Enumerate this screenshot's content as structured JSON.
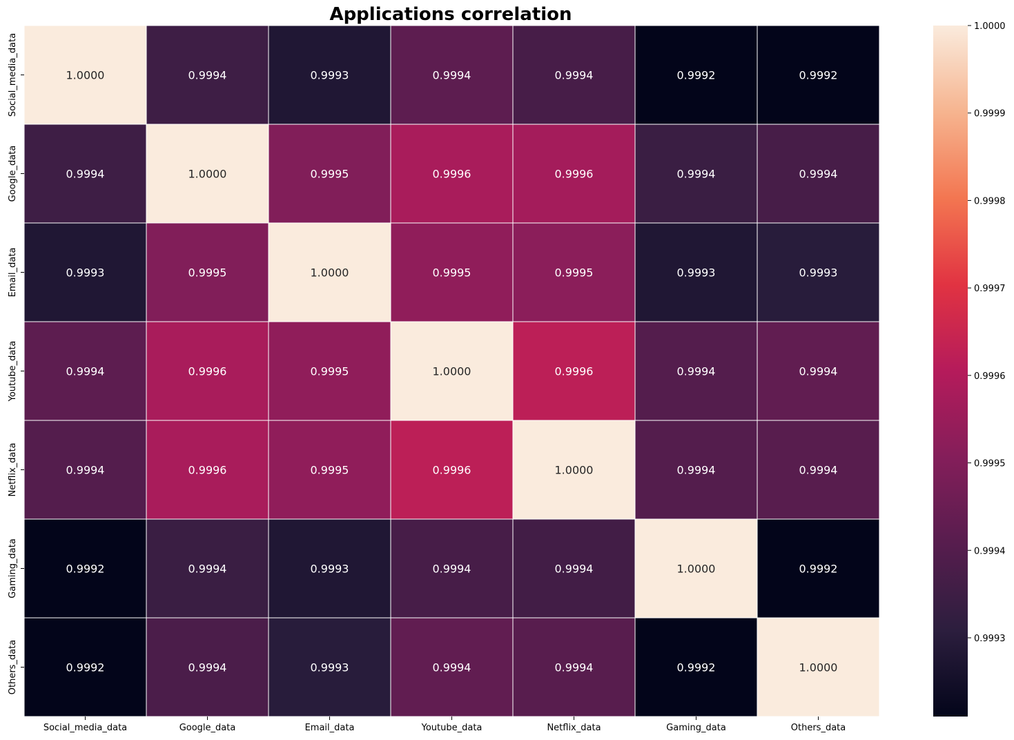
{
  "chart_data": {
    "type": "heatmap",
    "title": "Applications correlation",
    "xlabel": "",
    "ylabel": "",
    "x_categories": [
      "Social_media_data",
      "Google_data",
      "Email_data",
      "Youtube_data",
      "Netflix_data",
      "Gaming_data",
      "Others_data"
    ],
    "y_categories": [
      "Social_media_data",
      "Google_data",
      "Email_data",
      "Youtube_data",
      "Netflix_data",
      "Gaming_data",
      "Others_data"
    ],
    "values": [
      [
        1.0,
        0.99935,
        0.99928,
        0.99942,
        0.99937,
        0.99917,
        0.9992
      ],
      [
        0.99935,
        1.0,
        0.9995,
        0.99958,
        0.99957,
        0.99934,
        0.99937
      ],
      [
        0.99928,
        0.9995,
        1.0,
        0.99953,
        0.99952,
        0.99928,
        0.9993
      ],
      [
        0.99942,
        0.99958,
        0.99953,
        1.0,
        0.99962,
        0.9994,
        0.99943
      ],
      [
        0.9994,
        0.99958,
        0.99953,
        0.99962,
        1.0,
        0.9994,
        0.99941
      ],
      [
        0.99917,
        0.99934,
        0.99928,
        0.99937,
        0.99936,
        1.0,
        0.9992
      ],
      [
        0.9992,
        0.99938,
        0.9993,
        0.99943,
        0.99941,
        0.9992,
        1.0
      ]
    ],
    "annotations": [
      [
        "1.0000",
        "0.9994",
        "0.9993",
        "0.9994",
        "0.9994",
        "0.9992",
        "0.9992"
      ],
      [
        "0.9994",
        "1.0000",
        "0.9995",
        "0.9996",
        "0.9996",
        "0.9994",
        "0.9994"
      ],
      [
        "0.9993",
        "0.9995",
        "1.0000",
        "0.9995",
        "0.9995",
        "0.9993",
        "0.9993"
      ],
      [
        "0.9994",
        "0.9996",
        "0.9995",
        "1.0000",
        "0.9996",
        "0.9994",
        "0.9994"
      ],
      [
        "0.9994",
        "0.9996",
        "0.9995",
        "0.9996",
        "1.0000",
        "0.9994",
        "0.9994"
      ],
      [
        "0.9992",
        "0.9994",
        "0.9993",
        "0.9994",
        "0.9994",
        "1.0000",
        "0.9992"
      ],
      [
        "0.9992",
        "0.9994",
        "0.9993",
        "0.9994",
        "0.9994",
        "0.9992",
        "1.0000"
      ]
    ],
    "colorbar": {
      "vmin": 0.99921,
      "vmax": 1.0,
      "ticks": [
        "0.9993",
        "0.9994",
        "0.9995",
        "0.9996",
        "0.9997",
        "0.9998",
        "0.9999",
        "1.0000"
      ],
      "colormap": "rocket",
      "colormap_stops": [
        "#03051a",
        "#2c1e3e",
        "#571d4e",
        "#841e5a",
        "#b51b5b",
        "#e13342",
        "#f37651",
        "#f6b48f",
        "#faebdd"
      ]
    },
    "grid": false,
    "cell_separator_color": "#ffffff"
  }
}
